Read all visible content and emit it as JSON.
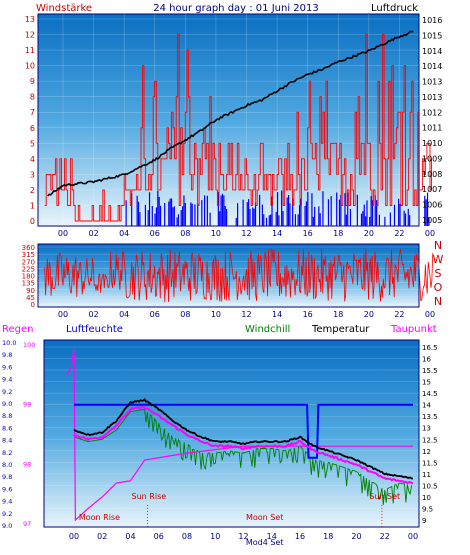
{
  "header": {
    "left_label": "Windstärke",
    "title": "24 hour graph day : 01 Juni 2013",
    "right_label": "Luftdruck"
  },
  "colors": {
    "wind": "#ff0000",
    "gust": "#0000ff",
    "pressure": "#000000",
    "humidity": "#0000ff",
    "windchill": "#008000",
    "temperature": "#000000",
    "dewpoint": "#ff00ff",
    "rain": "#ff00ff",
    "frame": "#000080"
  },
  "chart_data": [
    {
      "type": "line",
      "panel": "wind-pressure",
      "x_ticks": [
        "00",
        "02",
        "04",
        "06",
        "08",
        "10",
        "12",
        "14",
        "16",
        "18",
        "20",
        "22",
        "00"
      ],
      "y_left_ticks": [
        "0",
        "1",
        "2",
        "3",
        "4",
        "5",
        "6",
        "7",
        "8",
        "9",
        "10",
        "11",
        "12",
        "13"
      ],
      "y_right_ticks": [
        "1005",
        "1006",
        "1007",
        "1008",
        "1009",
        "1010",
        "1011",
        "1012",
        "1013",
        "1013",
        "1014",
        "1014",
        "1015",
        "1016"
      ],
      "ylim_left": [
        0,
        13
      ],
      "ylim_right": [
        1005,
        1016
      ],
      "series": [
        {
          "name": "Windstärke",
          "description": "wind speed spikes",
          "color_key": "wind",
          "hourly_max": [
            5,
            2,
            1,
            2,
            4,
            10,
            8,
            13,
            13,
            9,
            6,
            6,
            5,
            5,
            7,
            7,
            10,
            9,
            6,
            13,
            13,
            12,
            13,
            8
          ]
        },
        {
          "name": "Luftdruck",
          "x": [
            0,
            1,
            2,
            3,
            4,
            5,
            6,
            7,
            8,
            9,
            10,
            11,
            12,
            13,
            14,
            15,
            16,
            17,
            18,
            19,
            20,
            21,
            22,
            23,
            24
          ],
          "values": [
            1006.3,
            1006.9,
            1007.0,
            1007.1,
            1007.3,
            1007.5,
            1007.9,
            1008.3,
            1008.9,
            1009.4,
            1009.9,
            1010.5,
            1010.9,
            1011.3,
            1011.6,
            1012.1,
            1012.6,
            1013.0,
            1013.3,
            1013.7,
            1014.0,
            1014.3,
            1014.7,
            1015.1,
            1015.4
          ]
        }
      ]
    },
    {
      "type": "line",
      "panel": "wind-direction",
      "x_ticks": [
        "00",
        "02",
        "04",
        "06",
        "08",
        "10",
        "12",
        "14",
        "16",
        "18",
        "20",
        "22",
        "00"
      ],
      "y_ticks": [
        "0",
        "45",
        "90",
        "135",
        "180",
        "225",
        "270",
        "315",
        "360"
      ],
      "ylim": [
        0,
        360
      ],
      "compass_labels": [
        "N",
        "W",
        "S",
        "O",
        "N"
      ],
      "series": [
        {
          "name": "Windrichtung",
          "hourly_range": [
            [
              30,
              330
            ],
            [
              40,
              300
            ],
            [
              60,
              200
            ],
            [
              80,
              340
            ],
            [
              20,
              340
            ],
            [
              10,
              350
            ],
            [
              10,
              350
            ],
            [
              20,
              350
            ],
            [
              10,
              350
            ],
            [
              20,
              340
            ],
            [
              10,
              350
            ],
            [
              20,
              350
            ],
            [
              10,
              340
            ],
            [
              20,
              350
            ],
            [
              10,
              350
            ],
            [
              20,
              350
            ],
            [
              10,
              350
            ],
            [
              20,
              350
            ],
            [
              10,
              350
            ],
            [
              20,
              350
            ],
            [
              10,
              350
            ],
            [
              20,
              350
            ],
            [
              10,
              350
            ],
            [
              20,
              350
            ]
          ]
        }
      ]
    },
    {
      "type": "line",
      "panel": "temperature",
      "legend": [
        "Regen",
        "Luftfeuchte",
        "Windchill",
        "Temperatur",
        "Taupunkt"
      ],
      "x_ticks": [
        "00",
        "02",
        "04",
        "06",
        "08",
        "10",
        "12",
        "14",
        "16",
        "18",
        "20",
        "22",
        "00"
      ],
      "y_rain_ticks": [
        "10.0",
        "9.8",
        "9.6",
        "9.4",
        "9.2",
        "9.0",
        "8.8",
        "8.6",
        "8.4",
        "8.2",
        "8.0",
        "9.8",
        "9.6",
        "9.4",
        "9.2",
        "9.0"
      ],
      "y_humidity_ticks": [
        "100",
        "99",
        "98",
        "97"
      ],
      "y_right_ticks": [
        "9",
        "9.5",
        "10",
        "10.5",
        "11",
        "11.5",
        "12",
        "12.5",
        "13",
        "13.5",
        "14",
        "14.5",
        "15",
        "15.5",
        "16",
        "16.5"
      ],
      "ylim_right": [
        9,
        16.5
      ],
      "annotations": [
        "Moon Rise",
        "Sun Rise",
        "Moon Set",
        "Sun Set",
        "Mod4 Set"
      ],
      "series": [
        {
          "name": "Temperatur",
          "x": [
            0,
            1,
            2,
            3,
            4,
            5,
            6,
            7,
            8,
            9,
            10,
            11,
            12,
            13,
            14,
            15,
            16,
            17,
            18,
            19,
            20,
            21,
            22,
            23,
            24
          ],
          "values": [
            12.9,
            12.7,
            12.8,
            13.3,
            14.1,
            14.2,
            13.8,
            13.3,
            12.9,
            12.6,
            12.4,
            12.4,
            12.3,
            12.4,
            12.4,
            12.4,
            12.6,
            12.2,
            12.0,
            11.8,
            11.6,
            11.3,
            11.0,
            10.9,
            10.8
          ]
        },
        {
          "name": "Taupunkt",
          "x": [
            0,
            1,
            2,
            3,
            4,
            5,
            6,
            7,
            8,
            9,
            10,
            11,
            12,
            13,
            14,
            15,
            16,
            17,
            18,
            19,
            20,
            21,
            22,
            23,
            24
          ],
          "values": [
            12.7,
            12.5,
            12.6,
            13.1,
            13.8,
            13.9,
            13.5,
            13.1,
            12.7,
            12.4,
            12.2,
            12.2,
            12.1,
            12.2,
            12.2,
            12.2,
            12.4,
            12.0,
            11.8,
            11.6,
            11.4,
            11.1,
            10.8,
            10.7,
            10.6
          ]
        },
        {
          "name": "Windchill",
          "x": [
            0,
            1,
            2,
            3,
            4,
            5,
            6,
            7,
            8,
            9,
            10,
            11,
            12,
            13,
            14,
            15,
            16,
            17,
            18,
            19,
            20,
            21,
            22,
            23,
            24
          ],
          "values": [
            12.6,
            12.4,
            12.5,
            12.9,
            13.7,
            13.8,
            13.2,
            12.6,
            12.3,
            11.9,
            11.9,
            12.0,
            11.9,
            12.1,
            12.1,
            12.0,
            12.2,
            11.6,
            11.5,
            11.3,
            11.1,
            10.7,
            10.3,
            10.6,
            10.5
          ]
        },
        {
          "name": "Luftfeuchte",
          "description": "constant near 14.0 with dip near 17h",
          "x": [
            0,
            16.5,
            16.6,
            17.2,
            17.3,
            24
          ],
          "values": [
            14.0,
            14.0,
            11.7,
            11.7,
            14.0,
            14.0
          ]
        },
        {
          "name": "Regen",
          "x": [
            -0.5,
            -0.2,
            0.0,
            0.1,
            1.0,
            2.0,
            3.0,
            4.0,
            5.0,
            6.0,
            8.0,
            12.0,
            16.0,
            18.0,
            20.0,
            21.0,
            24.0
          ],
          "values": [
            15.3,
            15.6,
            16.4,
            9.0,
            9.5,
            10.0,
            10.6,
            10.7,
            11.6,
            11.7,
            11.9,
            12.2,
            12.2,
            12.2,
            12.2,
            12.2,
            12.2
          ]
        }
      ]
    }
  ]
}
